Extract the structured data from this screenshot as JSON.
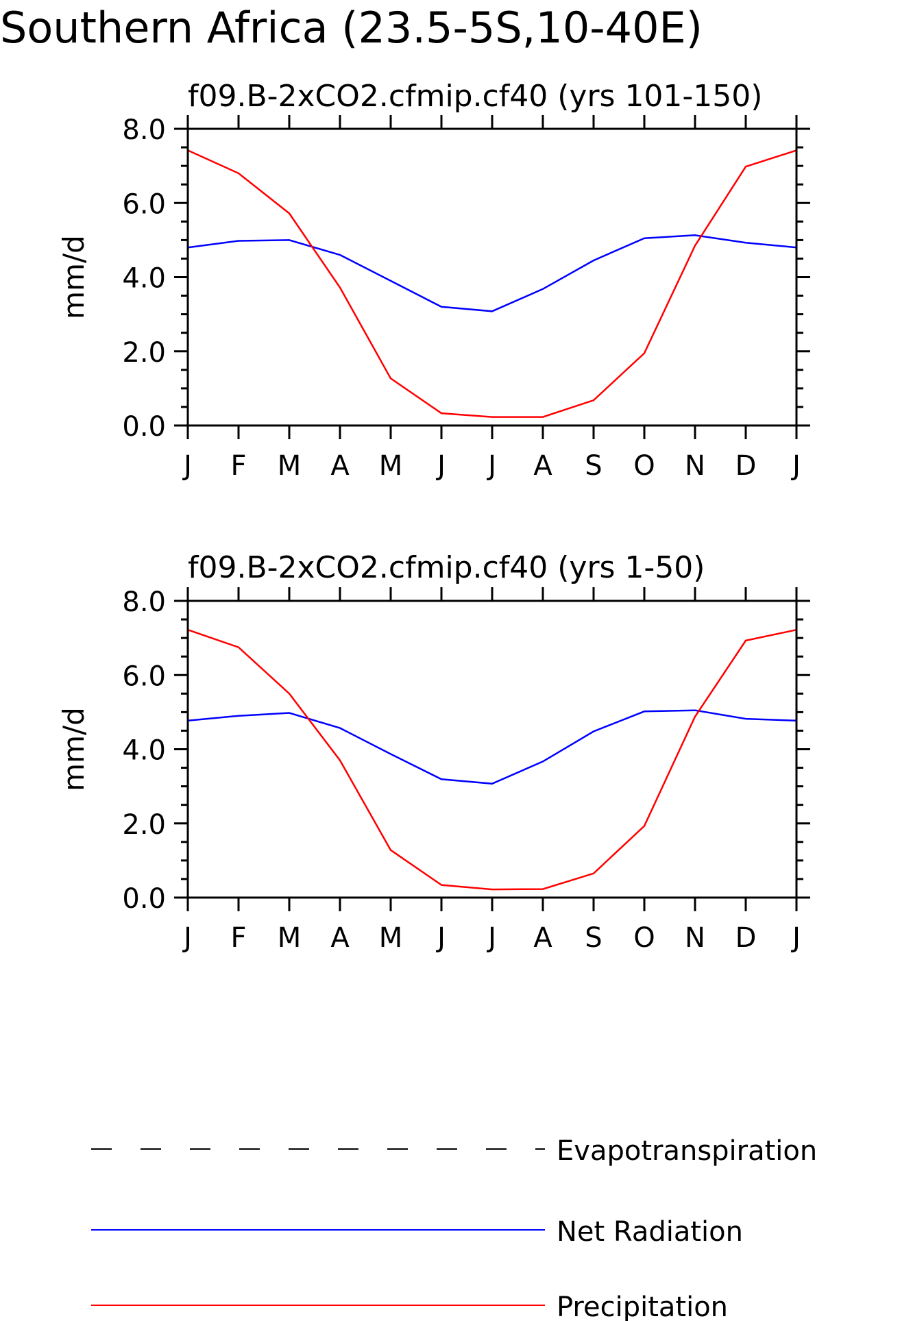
{
  "figure_title": "Southern Africa (23.5-5S,10-40E)",
  "legend": {
    "items": [
      {
        "label": "Evapotranspiration",
        "color": "#000000",
        "style": "dashed"
      },
      {
        "label": "Net Radiation",
        "color": "#0000ff",
        "style": "solid"
      },
      {
        "label": "Precipitation",
        "color": "#ff0000",
        "style": "solid"
      }
    ]
  },
  "chart_data": [
    {
      "type": "line",
      "title": "f09.B-2xCO2.cfmip.cf40 (yrs 101-150)",
      "ylabel": "mm/d",
      "xlabel": "",
      "ylim": [
        0,
        8
      ],
      "yticks": [
        "0.0",
        "2.0",
        "4.0",
        "6.0",
        "8.0"
      ],
      "categories": [
        "J",
        "F",
        "M",
        "A",
        "M",
        "J",
        "J",
        "A",
        "S",
        "O",
        "N",
        "D",
        "J"
      ],
      "series": [
        {
          "name": "Net Radiation",
          "color": "#0000ff",
          "values": [
            4.8,
            4.98,
            5.0,
            4.6,
            3.9,
            3.2,
            3.08,
            3.68,
            4.45,
            5.05,
            5.13,
            4.93,
            4.8
          ]
        },
        {
          "name": "Precipitation",
          "color": "#ff0000",
          "values": [
            7.42,
            6.8,
            5.72,
            3.72,
            1.27,
            0.33,
            0.23,
            0.23,
            0.68,
            1.95,
            4.85,
            6.98,
            7.42
          ]
        }
      ]
    },
    {
      "type": "line",
      "title": "f09.B-2xCO2.cfmip.cf40 (yrs 1-50)",
      "ylabel": "mm/d",
      "xlabel": "",
      "ylim": [
        0,
        8
      ],
      "yticks": [
        "0.0",
        "2.0",
        "4.0",
        "6.0",
        "8.0"
      ],
      "categories": [
        "J",
        "F",
        "M",
        "A",
        "M",
        "J",
        "J",
        "A",
        "S",
        "O",
        "N",
        "D",
        "J"
      ],
      "series": [
        {
          "name": "Net Radiation",
          "color": "#0000ff",
          "values": [
            4.77,
            4.9,
            4.98,
            4.57,
            3.87,
            3.19,
            3.07,
            3.67,
            4.48,
            5.02,
            5.05,
            4.82,
            4.77
          ]
        },
        {
          "name": "Precipitation",
          "color": "#ff0000",
          "values": [
            7.22,
            6.75,
            5.5,
            3.7,
            1.28,
            0.34,
            0.22,
            0.23,
            0.65,
            1.93,
            4.88,
            6.93,
            7.22
          ]
        }
      ]
    }
  ]
}
